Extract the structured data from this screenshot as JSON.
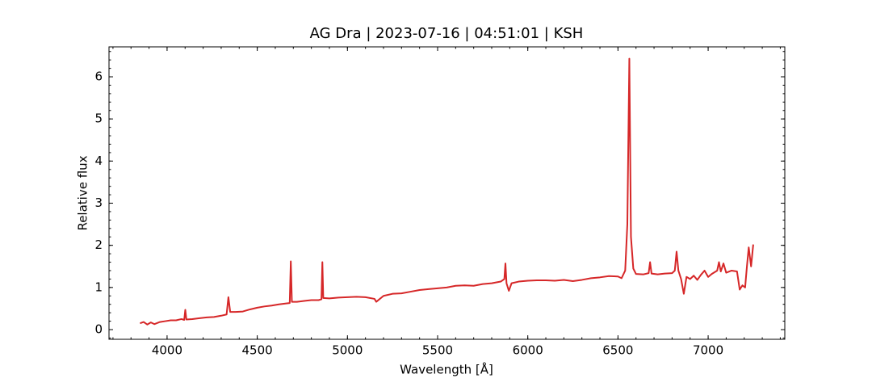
{
  "chart_data": {
    "type": "line",
    "title": "AG Dra | 2023-07-16 | 04:51:01 | KSH",
    "x_label": "Wavelength [Å]",
    "y_label": "Relative flux",
    "x": [
      3850,
      3870,
      3890,
      3910,
      3930,
      3960,
      3990,
      4020,
      4050,
      4080,
      4095,
      4101,
      4107,
      4140,
      4180,
      4220,
      4260,
      4300,
      4330,
      4340,
      4350,
      4380,
      4420,
      4460,
      4500,
      4540,
      4580,
      4620,
      4660,
      4680,
      4686,
      4692,
      4720,
      4760,
      4800,
      4840,
      4856,
      4861,
      4866,
      4900,
      4950,
      5000,
      5050,
      5100,
      5150,
      5160,
      5200,
      5250,
      5300,
      5350,
      5400,
      5450,
      5500,
      5550,
      5600,
      5650,
      5700,
      5750,
      5800,
      5850,
      5870,
      5876,
      5882,
      5895,
      5910,
      5950,
      6000,
      6050,
      6100,
      6150,
      6200,
      6250,
      6300,
      6350,
      6400,
      6450,
      6500,
      6520,
      6540,
      6552,
      6563,
      6572,
      6585,
      6600,
      6640,
      6670,
      6678,
      6686,
      6720,
      6760,
      6800,
      6815,
      6825,
      6835,
      6850,
      6865,
      6880,
      6900,
      6920,
      6940,
      6960,
      6980,
      7000,
      7020,
      7050,
      7060,
      7070,
      7085,
      7100,
      7130,
      7160,
      7175,
      7190,
      7205,
      7215,
      7225,
      7238,
      7250
    ],
    "series": [
      {
        "color": "#d62728",
        "values": [
          0.15,
          0.18,
          0.12,
          0.17,
          0.13,
          0.18,
          0.2,
          0.22,
          0.22,
          0.25,
          0.23,
          0.47,
          0.24,
          0.25,
          0.27,
          0.29,
          0.3,
          0.33,
          0.36,
          0.77,
          0.42,
          0.42,
          0.43,
          0.48,
          0.52,
          0.55,
          0.57,
          0.6,
          0.62,
          0.63,
          1.62,
          0.66,
          0.66,
          0.68,
          0.7,
          0.7,
          0.72,
          1.6,
          0.75,
          0.74,
          0.76,
          0.77,
          0.78,
          0.77,
          0.73,
          0.66,
          0.8,
          0.85,
          0.86,
          0.9,
          0.94,
          0.96,
          0.98,
          1.0,
          1.04,
          1.05,
          1.04,
          1.08,
          1.1,
          1.14,
          1.2,
          1.57,
          1.1,
          0.92,
          1.1,
          1.14,
          1.16,
          1.17,
          1.17,
          1.16,
          1.18,
          1.15,
          1.18,
          1.22,
          1.24,
          1.27,
          1.26,
          1.22,
          1.4,
          2.5,
          6.43,
          2.2,
          1.45,
          1.32,
          1.31,
          1.34,
          1.6,
          1.33,
          1.31,
          1.33,
          1.34,
          1.4,
          1.85,
          1.4,
          1.2,
          0.85,
          1.25,
          1.2,
          1.28,
          1.18,
          1.3,
          1.4,
          1.25,
          1.32,
          1.4,
          1.6,
          1.38,
          1.57,
          1.35,
          1.4,
          1.38,
          0.95,
          1.05,
          1.0,
          1.5,
          1.95,
          1.5,
          2.02
        ]
      }
    ],
    "xlim": [
      3678,
      7425
    ],
    "ylim": [
      -0.23,
      6.71
    ],
    "xticks": [
      4000,
      4500,
      5000,
      5500,
      6000,
      6500,
      7000
    ],
    "yticks": [
      0,
      1,
      2,
      3,
      4,
      5,
      6
    ],
    "minor_ticks": true,
    "grid": false
  }
}
